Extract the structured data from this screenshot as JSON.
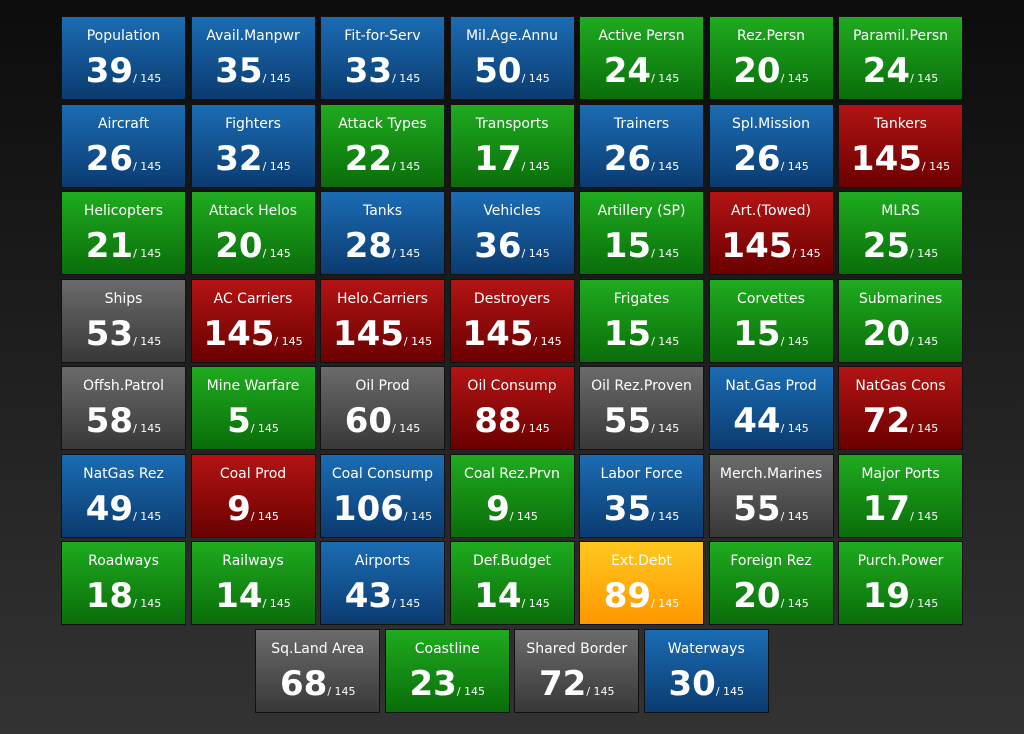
{
  "rows": [
    [
      {
        "label": "Population",
        "value": 39,
        "of": "/ 145",
        "color": "blue"
      },
      {
        "label": "Avail.Manpwr",
        "value": 35,
        "of": "/ 145",
        "color": "blue"
      },
      {
        "label": "Fit-for-Serv",
        "value": 33,
        "of": "/ 145",
        "color": "blue"
      },
      {
        "label": "Mil.Age.Annu",
        "value": 50,
        "of": "/ 145",
        "color": "blue"
      },
      {
        "label": "Active Persn",
        "value": 24,
        "of": "/ 145",
        "color": "green"
      },
      {
        "label": "Rez.Persn",
        "value": 20,
        "of": "/ 145",
        "color": "green"
      },
      {
        "label": "Paramil.Persn",
        "value": 24,
        "of": "/ 145",
        "color": "green"
      }
    ],
    [
      {
        "label": "Aircraft",
        "value": 26,
        "of": "/ 145",
        "color": "blue"
      },
      {
        "label": "Fighters",
        "value": 32,
        "of": "/ 145",
        "color": "blue"
      },
      {
        "label": "Attack Types",
        "value": 22,
        "of": "/ 145",
        "color": "green"
      },
      {
        "label": "Transports",
        "value": 17,
        "of": "/ 145",
        "color": "green"
      },
      {
        "label": "Trainers",
        "value": 26,
        "of": "/ 145",
        "color": "blue"
      },
      {
        "label": "Spl.Mission",
        "value": 26,
        "of": "/ 145",
        "color": "blue"
      },
      {
        "label": "Tankers",
        "value": 145,
        "of": "/ 145",
        "color": "red"
      }
    ],
    [
      {
        "label": "Helicopters",
        "value": 21,
        "of": "/ 145",
        "color": "green"
      },
      {
        "label": "Attack Helos",
        "value": 20,
        "of": "/ 145",
        "color": "green"
      },
      {
        "label": "Tanks",
        "value": 28,
        "of": "/ 145",
        "color": "blue"
      },
      {
        "label": "Vehicles",
        "value": 36,
        "of": "/ 145",
        "color": "blue"
      },
      {
        "label": "Artillery (SP)",
        "value": 15,
        "of": "/ 145",
        "color": "green"
      },
      {
        "label": "Art.(Towed)",
        "value": 145,
        "of": "/ 145",
        "color": "red"
      },
      {
        "label": "MLRS",
        "value": 25,
        "of": "/ 145",
        "color": "green"
      }
    ],
    [
      {
        "label": "Ships",
        "value": 53,
        "of": "/ 145",
        "color": "gray"
      },
      {
        "label": "AC Carriers",
        "value": 145,
        "of": "/ 145",
        "color": "red"
      },
      {
        "label": "Helo.Carriers",
        "value": 145,
        "of": "/ 145",
        "color": "red"
      },
      {
        "label": "Destroyers",
        "value": 145,
        "of": "/ 145",
        "color": "red"
      },
      {
        "label": "Frigates",
        "value": 15,
        "of": "/ 145",
        "color": "green"
      },
      {
        "label": "Corvettes",
        "value": 15,
        "of": "/ 145",
        "color": "green"
      },
      {
        "label": "Submarines",
        "value": 20,
        "of": "/ 145",
        "color": "green"
      }
    ],
    [
      {
        "label": "Offsh.Patrol",
        "value": 58,
        "of": "/ 145",
        "color": "gray"
      },
      {
        "label": "Mine Warfare",
        "value": 5,
        "of": "/ 145",
        "color": "green"
      },
      {
        "label": "Oil Prod",
        "value": 60,
        "of": "/ 145",
        "color": "gray"
      },
      {
        "label": "Oil Consump",
        "value": 88,
        "of": "/ 145",
        "color": "red"
      },
      {
        "label": "Oil Rez.Proven",
        "value": 55,
        "of": "/ 145",
        "color": "gray"
      },
      {
        "label": "Nat.Gas Prod",
        "value": 44,
        "of": "/ 145",
        "color": "blue"
      },
      {
        "label": "NatGas Cons",
        "value": 72,
        "of": "/ 145",
        "color": "red"
      }
    ],
    [
      {
        "label": "NatGas Rez",
        "value": 49,
        "of": "/ 145",
        "color": "blue"
      },
      {
        "label": "Coal Prod",
        "value": 9,
        "of": "/ 145",
        "color": "red"
      },
      {
        "label": "Coal Consump",
        "value": 106,
        "of": "/ 145",
        "color": "blue"
      },
      {
        "label": "Coal Rez.Prvn",
        "value": 9,
        "of": "/ 145",
        "color": "green"
      },
      {
        "label": "Labor Force",
        "value": 35,
        "of": "/ 145",
        "color": "blue"
      },
      {
        "label": "Merch.Marines",
        "value": 55,
        "of": "/ 145",
        "color": "gray"
      },
      {
        "label": "Major Ports",
        "value": 17,
        "of": "/ 145",
        "color": "green"
      }
    ],
    [
      {
        "label": "Roadways",
        "value": 18,
        "of": "/ 145",
        "color": "green"
      },
      {
        "label": "Railways",
        "value": 14,
        "of": "/ 145",
        "color": "green"
      },
      {
        "label": "Airports",
        "value": 43,
        "of": "/ 145",
        "color": "blue"
      },
      {
        "label": "Def.Budget",
        "value": 14,
        "of": "/ 145",
        "color": "green"
      },
      {
        "label": "Ext.Debt",
        "value": 89,
        "of": "/ 145",
        "color": "orange"
      },
      {
        "label": "Foreign Rez",
        "value": 20,
        "of": "/ 145",
        "color": "green"
      },
      {
        "label": "Purch.Power",
        "value": 19,
        "of": "/ 145",
        "color": "green"
      }
    ],
    [
      {
        "label": "Sq.Land Area",
        "value": 68,
        "of": "/ 145",
        "color": "gray"
      },
      {
        "label": "Coastline",
        "value": 23,
        "of": "/ 145",
        "color": "green"
      },
      {
        "label": "Shared Border",
        "value": 72,
        "of": "/ 145",
        "color": "gray"
      },
      {
        "label": "Waterways",
        "value": 30,
        "of": "/ 145",
        "color": "blue"
      }
    ]
  ]
}
